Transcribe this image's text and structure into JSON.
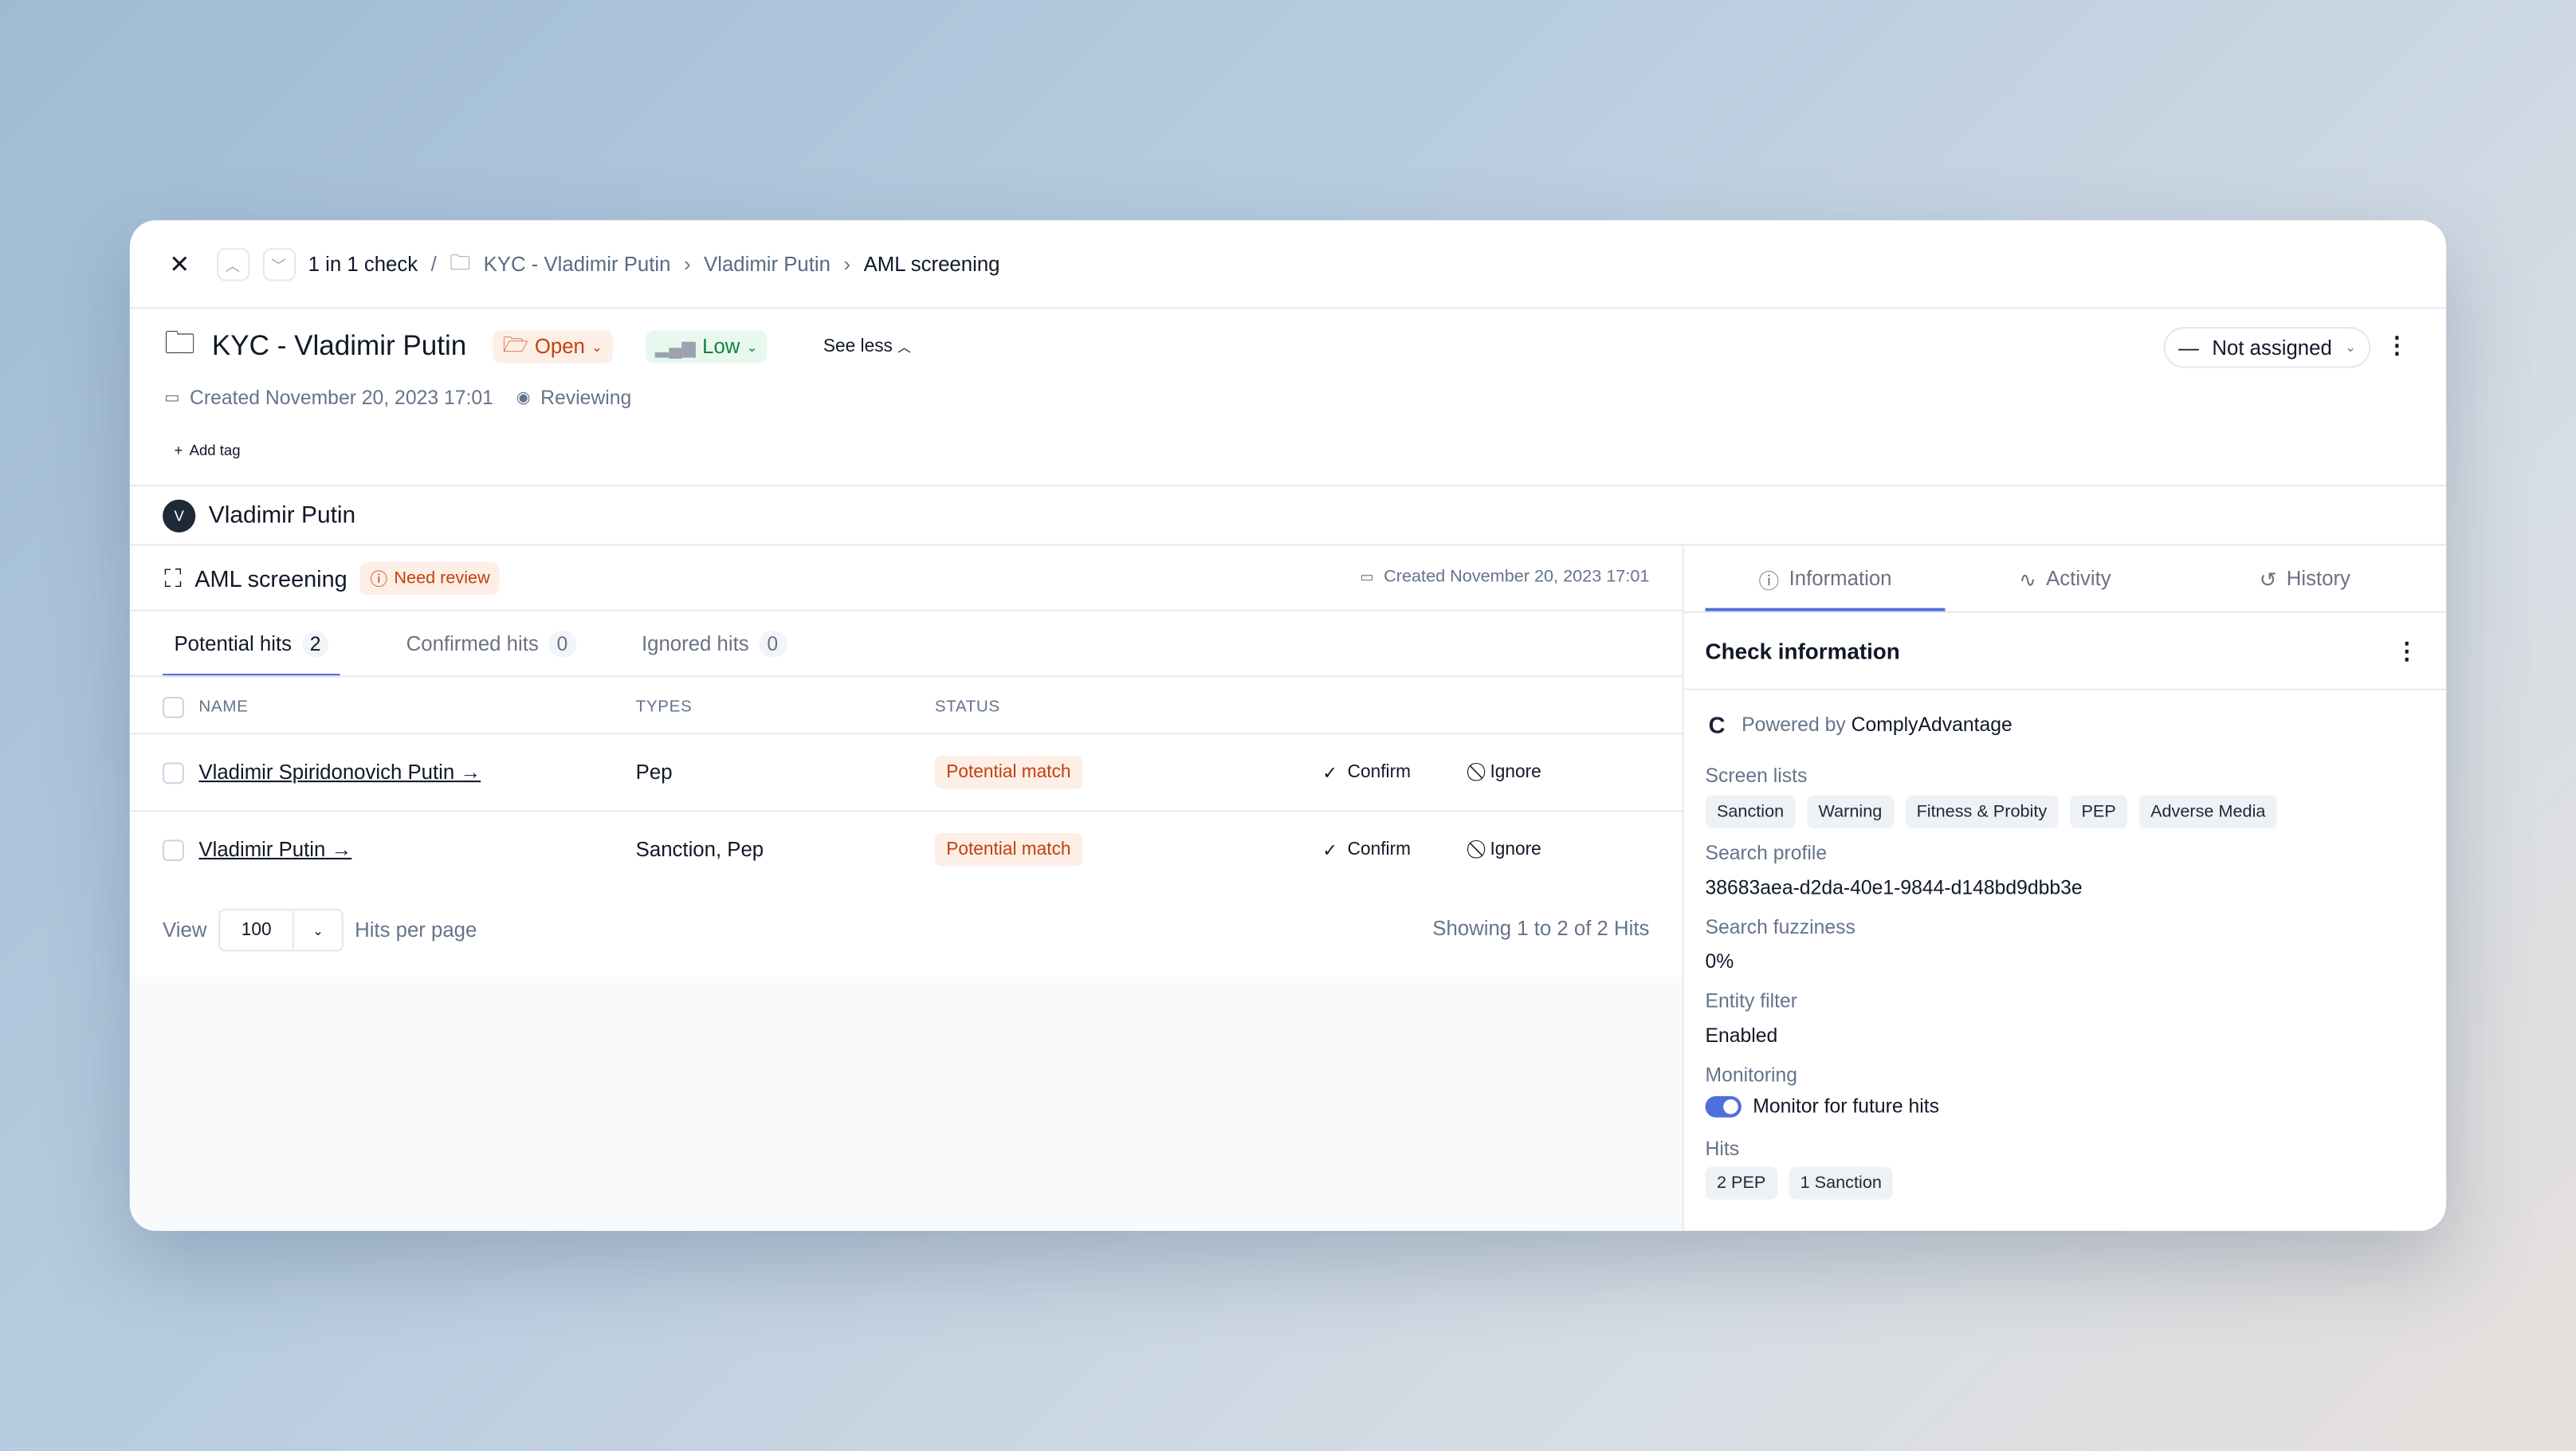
{
  "breadcrumb": {
    "counter": "1 in 1 check",
    "separator": "/",
    "items": [
      "KYC - Vladimir Putin",
      "Vladimir Putin",
      "AML screening"
    ]
  },
  "case": {
    "title": "KYC - Vladimir Putin",
    "status": "Open",
    "risk": "Low",
    "see_less": "See less",
    "created": "Created November 20, 2023 17:01",
    "state": "Reviewing",
    "add_tag": "Add tag",
    "assignee": "Not assigned"
  },
  "person": {
    "initial": "V",
    "name": "Vladimir Putin"
  },
  "check": {
    "title": "AML screening",
    "badge": "Need review",
    "created": "Created November 20, 2023 17:01"
  },
  "tabs": [
    {
      "label": "Potential hits",
      "count": "2"
    },
    {
      "label": "Confirmed hits",
      "count": "0"
    },
    {
      "label": "Ignored hits",
      "count": "0"
    }
  ],
  "table": {
    "headers": [
      "NAME",
      "TYPES",
      "STATUS"
    ],
    "rows": [
      {
        "name": "Vladimir Spiridonovich Putin",
        "types": "Pep",
        "status": "Potential match",
        "confirm": "Confirm",
        "ignore": "Ignore"
      },
      {
        "name": "Vladimir Putin",
        "types": "Sanction, Pep",
        "status": "Potential match",
        "confirm": "Confirm",
        "ignore": "Ignore"
      }
    ]
  },
  "pagination": {
    "view": "View",
    "per_page": "100",
    "per_page_label": "Hits per page",
    "summary": "Showing 1 to 2 of 2 Hits"
  },
  "side_tabs": [
    "Information",
    "Activity",
    "History"
  ],
  "info": {
    "title": "Check information",
    "powered_by": "Powered by",
    "provider": "ComplyAdvantage",
    "screen_lists_label": "Screen lists",
    "screen_lists": [
      "Sanction",
      "Warning",
      "Fitness & Probity",
      "PEP",
      "Adverse Media"
    ],
    "search_profile_label": "Search profile",
    "search_profile": "38683aea-d2da-40e1-9844-d148bd9dbb3e",
    "fuzziness_label": "Search fuzziness",
    "fuzziness": "0%",
    "entity_filter_label": "Entity filter",
    "entity_filter": "Enabled",
    "monitoring_label": "Monitoring",
    "monitoring": "Monitor for future hits",
    "monitoring_on": true,
    "hits_label": "Hits",
    "hits": [
      "2 PEP",
      "1 Sanction"
    ]
  },
  "colors": {
    "accent": "#4f6fdc",
    "open_bg": "#fdeee6",
    "open_fg": "#c2410c",
    "low_bg": "#e8f8ef",
    "low_fg": "#15803d"
  }
}
